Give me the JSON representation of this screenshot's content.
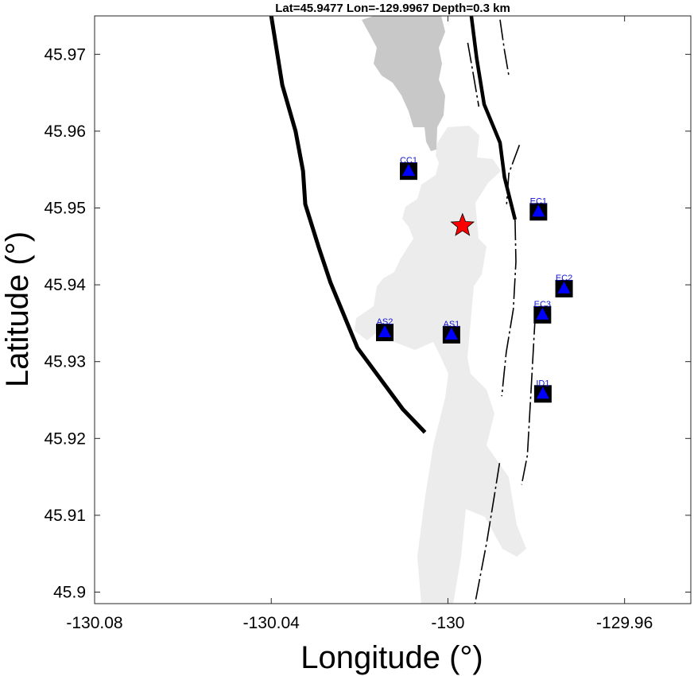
{
  "chart_data": {
    "type": "scatter",
    "title": "Lat=45.9477  Lon=-129.9967  Depth=0.3 km",
    "xlabel": "Longitude (°)",
    "ylabel": "Latitude (°)",
    "xlim": [
      -130.08,
      -129.945
    ],
    "ylim": [
      45.8985,
      45.975
    ],
    "x_ticks": [
      -130.08,
      -130.04,
      -130,
      -129.96
    ],
    "x_tick_labels": [
      "-130.08",
      "-130.04",
      "-130",
      "-129.96"
    ],
    "y_ticks": [
      45.9,
      45.91,
      45.92,
      45.93,
      45.94,
      45.95,
      45.96,
      45.97
    ],
    "y_tick_labels": [
      "45.9",
      "45.91",
      "45.92",
      "45.93",
      "45.94",
      "45.95",
      "45.96",
      "45.97"
    ],
    "grid": false,
    "event": {
      "lon": -129.9967,
      "lat": 45.9477,
      "depth_km": 0.3,
      "marker": "star",
      "color": "#ff0000"
    },
    "stations": [
      {
        "name": "CC1",
        "lon": -130.0089,
        "lat": 45.9548
      },
      {
        "name": "EC1",
        "lon": -129.9795,
        "lat": 45.9495
      },
      {
        "name": "EC2",
        "lon": -129.9737,
        "lat": 45.9395
      },
      {
        "name": "EC3",
        "lon": -129.9786,
        "lat": 45.9361
      },
      {
        "name": "AS2",
        "lon": -130.0143,
        "lat": 45.9338
      },
      {
        "name": "AS1",
        "lon": -129.9992,
        "lat": 45.9335
      },
      {
        "name": "ID1",
        "lon": -129.9785,
        "lat": 45.9258
      }
    ],
    "station_marker_color": "#0000ff",
    "caldera_rim_west": [
      [
        -130.04,
        45.975
      ],
      [
        -130.0375,
        45.966
      ],
      [
        -130.0345,
        45.96
      ],
      [
        -130.0328,
        45.9548
      ],
      [
        -130.0323,
        45.9505
      ],
      [
        -130.0292,
        45.9448
      ],
      [
        -130.0266,
        45.9403
      ],
      [
        -130.0205,
        45.9318
      ],
      [
        -130.0102,
        45.9238
      ],
      [
        -130.0052,
        45.9208
      ]
    ],
    "caldera_rim_east": [
      [
        -129.9947,
        45.975
      ],
      [
        -129.9935,
        45.9695
      ],
      [
        -129.9918,
        45.9635
      ],
      [
        -129.9882,
        45.9585
      ],
      [
        -129.9872,
        45.954
      ],
      [
        -129.9848,
        45.9485
      ]
    ],
    "fissure_lines": [
      [
        [
          -129.9955,
          45.9715
        ],
        [
          -129.9942,
          45.9672
        ],
        [
          -129.993,
          45.9632
        ]
      ],
      [
        [
          -129.9882,
          45.9745
        ],
        [
          -129.9872,
          45.9705
        ],
        [
          -129.9862,
          45.9672
        ]
      ],
      [
        [
          -129.9838,
          45.9582
        ],
        [
          -129.9862,
          45.9545
        ],
        [
          -129.9867,
          45.9505
        ]
      ],
      [
        [
          -129.9848,
          45.9485
        ],
        [
          -129.9846,
          45.943
        ],
        [
          -129.9852,
          45.9368
        ],
        [
          -129.9868,
          45.9312
        ],
        [
          -129.9878,
          45.9255
        ]
      ],
      [
        [
          -129.9802,
          45.9362
        ],
        [
          -129.9812,
          45.926
        ],
        [
          -129.982,
          45.9178
        ],
        [
          -129.9833,
          45.914
        ]
      ],
      [
        [
          -129.9883,
          45.9168
        ],
        [
          -129.9895,
          45.9125
        ],
        [
          -129.9912,
          45.9065
        ],
        [
          -129.9932,
          45.9005
        ],
        [
          -129.9943,
          45.8972
        ]
      ]
    ],
    "lava_flow_dark_color": "#c8c8c8",
    "lava_flow_light_color": "#ececec"
  }
}
